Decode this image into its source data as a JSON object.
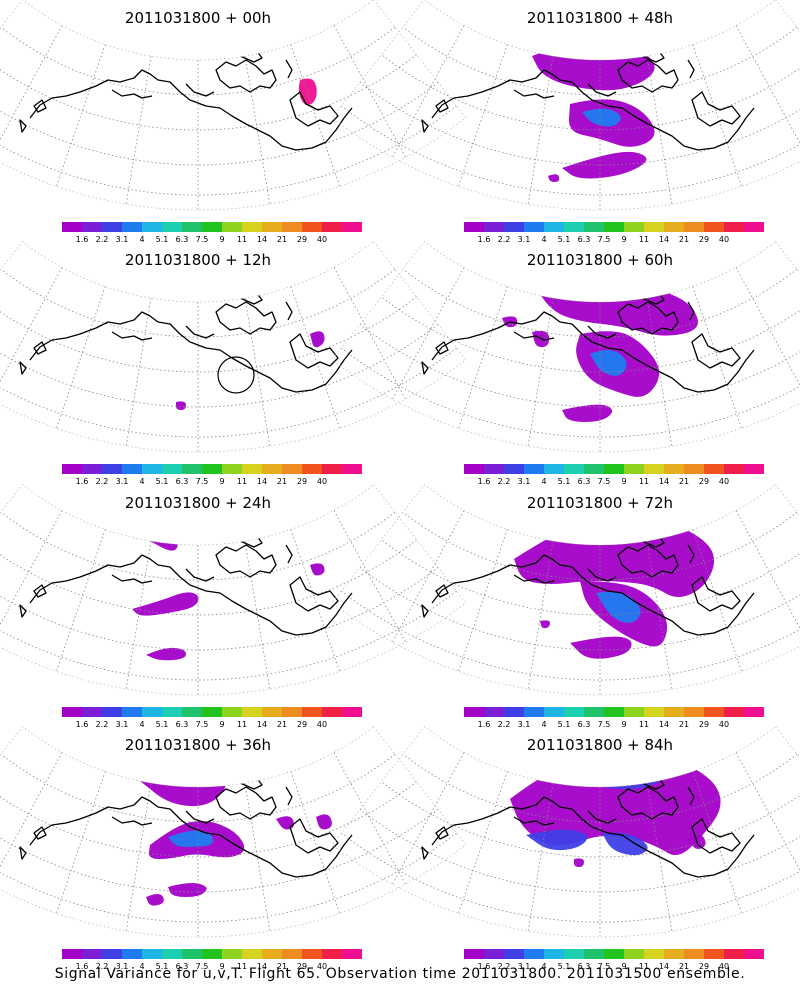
{
  "caption": "Signal Variance for u,v,T. Flight 65. Observation time 2011031800. 2011031500 ensemble.",
  "chart_data": {
    "type": "heatmap",
    "colorbar": {
      "tick_labels": [
        "1.6",
        "2.2",
        "3.1",
        "4",
        "5.1",
        "6.3",
        "7.5",
        "9",
        "11",
        "14",
        "21",
        "29",
        "40"
      ],
      "colors": [
        "#a300c8",
        "#7b1fd6",
        "#3f3fe6",
        "#1f7cf0",
        "#1fb6e6",
        "#1ccfb1",
        "#1fc36c",
        "#23c31f",
        "#8fd21f",
        "#d6d21f",
        "#e6ae1f",
        "#ef8c1f",
        "#f2541f",
        "#f01f4a",
        "#ee0f8e"
      ]
    },
    "panels": [
      {
        "title": "2011031800 + 00h",
        "max_level": "40",
        "coverage": "minimal"
      },
      {
        "title": "2011031800 + 12h",
        "max_level": "1.6",
        "coverage": "minimal"
      },
      {
        "title": "2011031800 + 24h",
        "max_level": "2.2",
        "coverage": "low"
      },
      {
        "title": "2011031800 + 36h",
        "max_level": "4",
        "coverage": "low"
      },
      {
        "title": "2011031800 + 48h",
        "max_level": "5.1",
        "coverage": "moderate"
      },
      {
        "title": "2011031800 + 60h",
        "max_level": "5.1",
        "coverage": "moderate"
      },
      {
        "title": "2011031800 + 72h",
        "max_level": "5.1",
        "coverage": "high"
      },
      {
        "title": "2011031800 + 84h",
        "max_level": "5.1",
        "coverage": "high"
      }
    ]
  }
}
